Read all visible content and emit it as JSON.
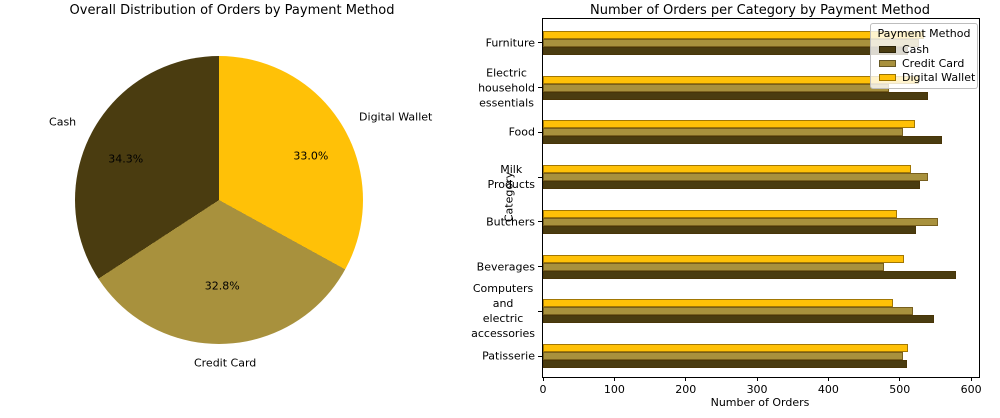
{
  "colors": {
    "cash": "#4A3C10",
    "credit_card": "#A8913D",
    "digital_wallet": "#FFC107",
    "background": "#FFFFFF",
    "text": "#000000",
    "legend_border": "#BDBDBD"
  },
  "legend": {
    "title": "Payment Method",
    "entries": [
      "Cash",
      "Credit Card",
      "Digital Wallet"
    ]
  },
  "chart_data": [
    {
      "type": "pie",
      "title": "Overall Distribution of Orders by Payment Method",
      "labels": [
        "Cash",
        "Credit Card",
        "Digital Wallet"
      ],
      "values_percent": [
        34.3,
        32.8,
        33.0
      ],
      "pct_labels": [
        "34.3%",
        "32.8%",
        "33.0%"
      ],
      "slice_colors": [
        "#4A3C10",
        "#A8913D",
        "#FFC107"
      ],
      "start_angle": "top",
      "direction": "clockwise",
      "order_clockwise_from_top": [
        "Digital Wallet",
        "Credit Card",
        "Cash"
      ]
    },
    {
      "type": "bar",
      "orientation": "horizontal",
      "title": "Number of Orders per Category by Payment Method",
      "xlabel": "Number of Orders",
      "ylabel": "Category",
      "xlim": [
        0,
        611
      ],
      "xticks": [
        0,
        100,
        200,
        300,
        400,
        500,
        600
      ],
      "grid": false,
      "legend_position": "upper right",
      "categories": [
        "Furniture",
        "Electric household essentials",
        "Food",
        "Milk Products",
        "Butchers",
        "Beverages",
        "Computers and electric accessories",
        "Patisserie"
      ],
      "category_display_lines": [
        [
          "Furniture"
        ],
        [
          "Electric",
          "household",
          "essentials"
        ],
        [
          "Food"
        ],
        [
          "Milk",
          "Products"
        ],
        [
          "Butchers"
        ],
        [
          "Beverages"
        ],
        [
          "Computers",
          "and electric",
          "accessories"
        ],
        [
          "Patisserie"
        ]
      ],
      "bar_order_top_to_bottom": [
        "Digital Wallet",
        "Credit Card",
        "Cash"
      ],
      "series": [
        {
          "name": "Cash",
          "color": "#4A3C10",
          "values": [
            512,
            540,
            559,
            528,
            523,
            579,
            548,
            510
          ]
        },
        {
          "name": "Credit Card",
          "color": "#A8913D",
          "values": [
            527,
            485,
            505,
            540,
            553,
            478,
            519,
            505
          ]
        },
        {
          "name": "Digital Wallet",
          "color": "#FFC107",
          "values": [
            534,
            527,
            521,
            516,
            496,
            506,
            491,
            512
          ]
        }
      ]
    }
  ]
}
